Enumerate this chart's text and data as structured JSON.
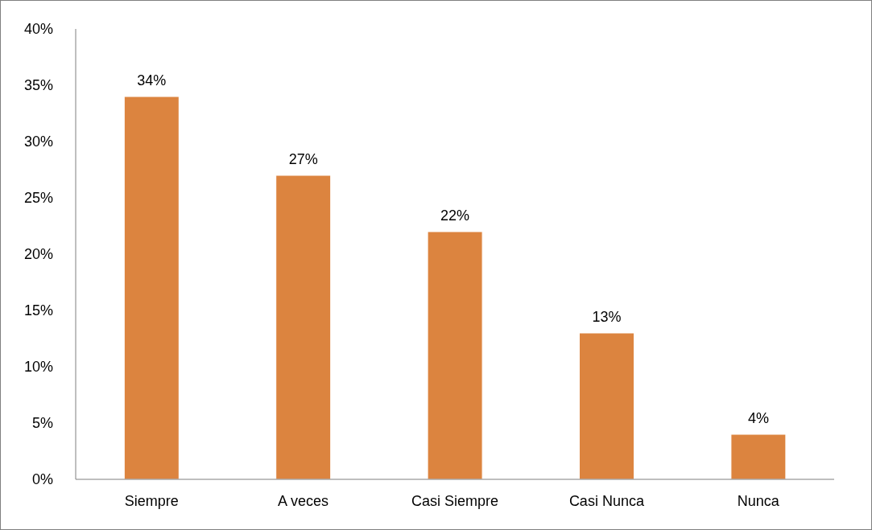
{
  "chart_data": {
    "type": "bar",
    "categories": [
      "Siempre",
      "A veces",
      "Casi Siempre",
      "Casi Nunca",
      "Nunca"
    ],
    "values": [
      34,
      27,
      22,
      13,
      4
    ],
    "value_labels": [
      "34%",
      "27%",
      "22%",
      "13%",
      "4%"
    ],
    "color": "#dc843f",
    "ylim": [
      0,
      40
    ],
    "yticks": [
      {
        "value": 0,
        "label": "0%"
      },
      {
        "value": 5,
        "label": "5%"
      },
      {
        "value": 10,
        "label": "10%"
      },
      {
        "value": 15,
        "label": "15%"
      },
      {
        "value": 20,
        "label": "20%"
      },
      {
        "value": 25,
        "label": "25%"
      },
      {
        "value": 30,
        "label": "30%"
      },
      {
        "value": 35,
        "label": "35%"
      },
      {
        "value": 40,
        "label": "40%"
      }
    ],
    "grid": false,
    "legend": false
  }
}
